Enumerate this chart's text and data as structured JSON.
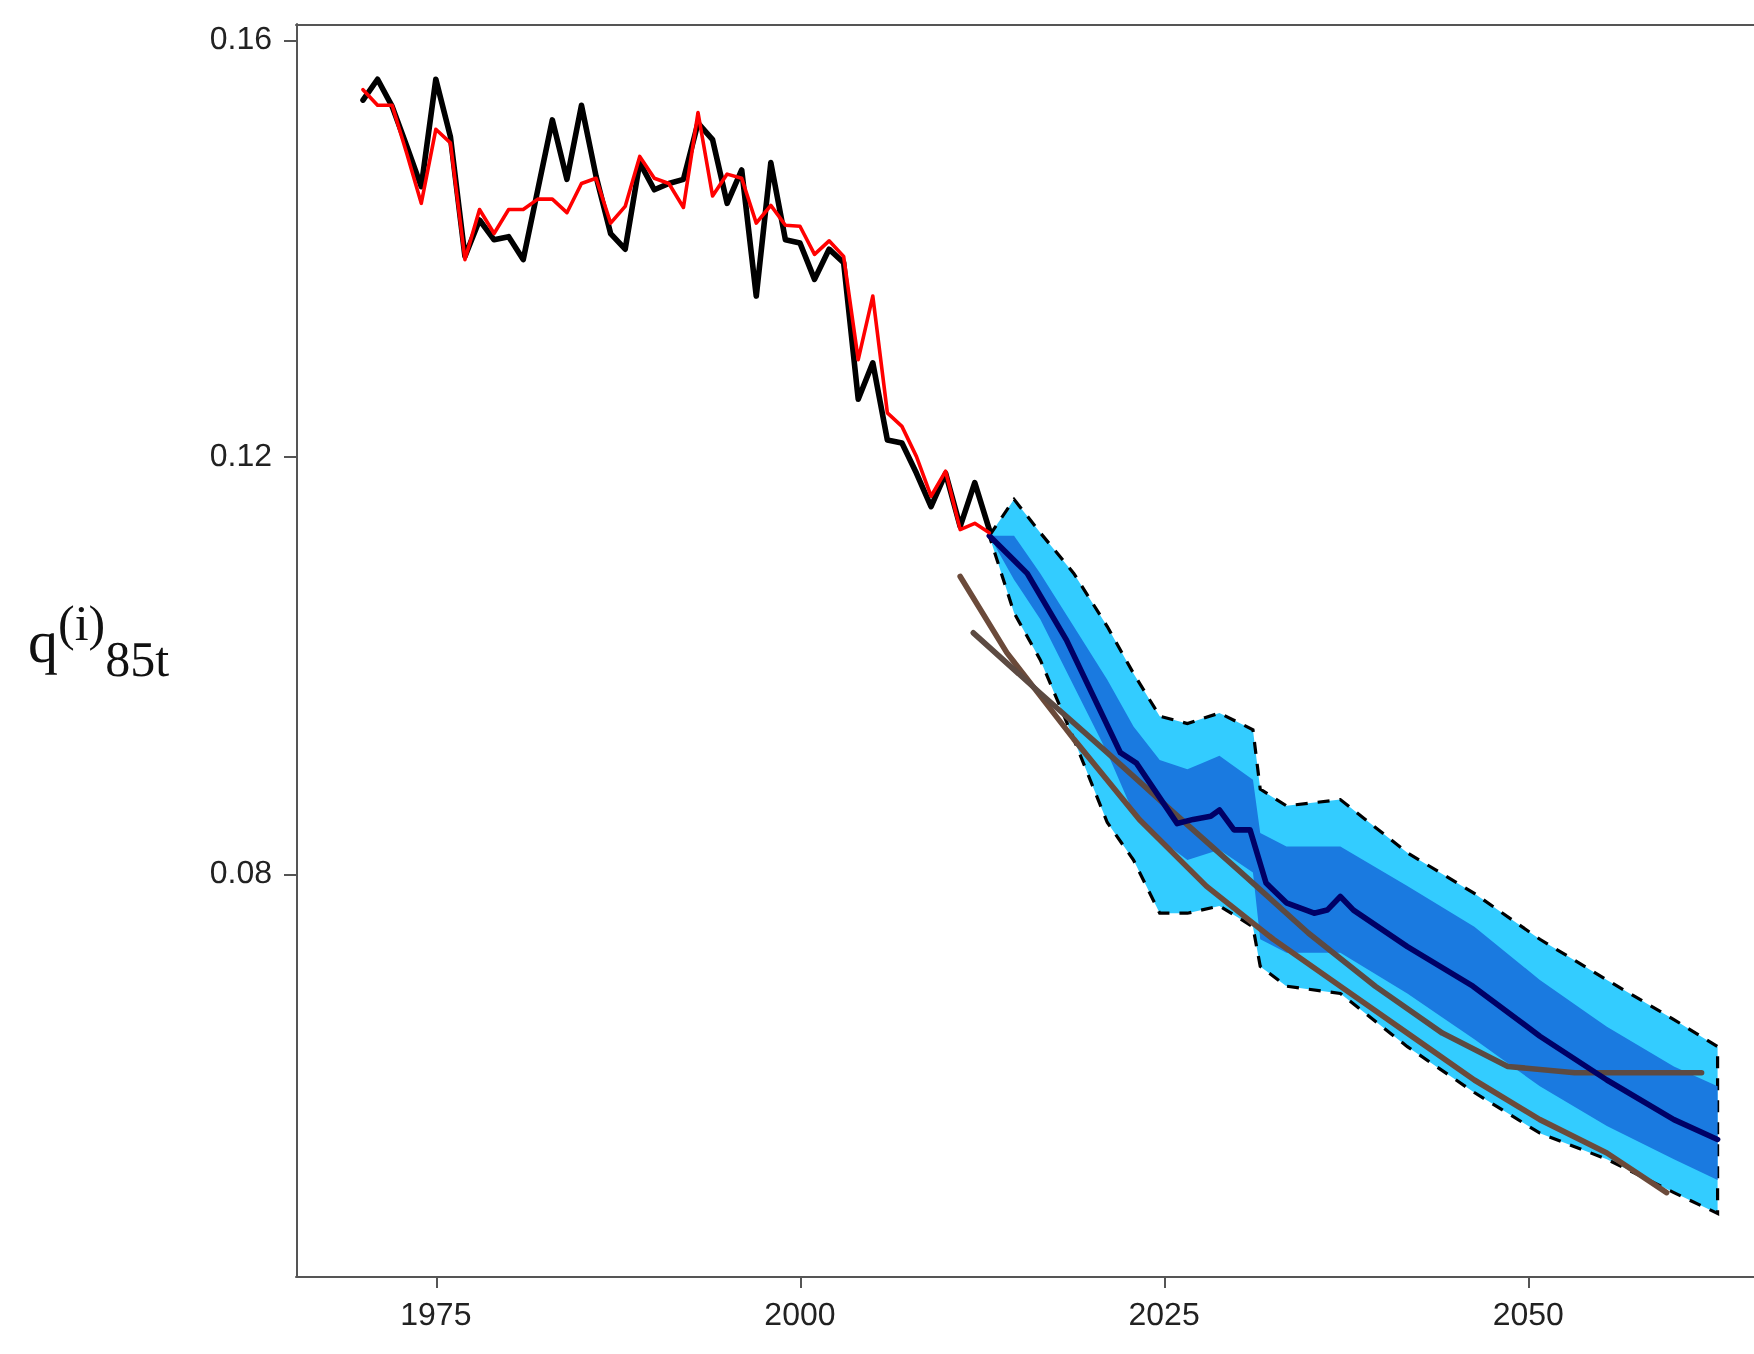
{
  "chart_data": {
    "type": "line",
    "ylabel": "q$^{(i)}$$_{85t}$",
    "xlim": [
      1965.4,
      2065.5
    ],
    "xticks": [
      1975,
      2000,
      2025,
      2050
    ],
    "ylim": [
      0.0414,
      0.1615
    ],
    "yticks": [
      0.08,
      0.12,
      0.16
    ],
    "grid": false,
    "marker": "none",
    "series": [
      {
        "type": "area",
        "color": "#33ccff",
        "line_style": "dashed",
        "x": [
          2013.0,
          2014.7,
          2016.5,
          2018.8,
          2021.1,
          2022.9,
          2024.7,
          2026.6,
          2028.8,
          2031.1,
          2031.6,
          2033.4,
          2037.1,
          2041.7,
          2046.3,
          2050.8,
          2055.4,
          2060.0,
          2063.0
        ],
        "values": [
          null,
          null,
          null,
          null,
          null,
          null,
          null,
          null,
          null,
          null,
          null,
          null,
          null,
          null,
          null,
          null,
          null,
          null,
          null
        ],
        "lower": [
          0.1124,
          0.105,
          0.1005,
          0.0929,
          0.0849,
          0.0813,
          0.0762,
          0.0762,
          0.0769,
          0.0749,
          0.0711,
          0.0692,
          0.0685,
          0.0634,
          0.059,
          0.0551,
          0.0526,
          0.0494,
          0.0474
        ],
        "upper": [
          0.1124,
          0.1159,
          0.1127,
          0.1088,
          0.1037,
          0.0992,
          0.0951,
          0.0944,
          0.0954,
          0.0938,
          0.0881,
          0.0865,
          0.0871,
          0.082,
          0.0781,
          0.0737,
          0.0698,
          0.066,
          0.0634
        ]
      },
      {
        "type": "area",
        "color": "#1a7ae0",
        "line_style": "solid",
        "x": [
          2013.0,
          2014.7,
          2016.5,
          2018.8,
          2021.1,
          2022.9,
          2024.7,
          2026.6,
          2028.8,
          2031.1,
          2031.6,
          2033.4,
          2037.1,
          2041.7,
          2046.3,
          2050.8,
          2055.4,
          2060.0,
          2063.0
        ],
        "values": [
          null,
          null,
          null,
          null,
          null,
          null,
          null,
          null,
          null,
          null,
          null,
          null,
          null,
          null,
          null,
          null,
          null,
          null,
          null
        ],
        "lower": [
          0.1124,
          0.1082,
          0.1044,
          0.098,
          0.0916,
          0.0858,
          0.0833,
          0.0813,
          0.0823,
          0.0801,
          0.0737,
          0.0724,
          0.0724,
          0.0685,
          0.0641,
          0.0596,
          0.0558,
          0.0526,
          0.0506
        ],
        "upper": [
          0.1124,
          0.1124,
          0.1088,
          0.1037,
          0.0986,
          0.0941,
          0.0909,
          0.09,
          0.0913,
          0.089,
          0.0839,
          0.0826,
          0.0826,
          0.0788,
          0.0749,
          0.0698,
          0.0653,
          0.0615,
          0.0596
        ]
      },
      {
        "color": "#6b4a3a",
        "x": [
          2011.0,
          2014.2,
          2018.8,
          2023.3,
          2027.9,
          2032.5,
          2037.1,
          2041.7,
          2046.3,
          2050.8,
          2055.4,
          2059.5
        ],
        "values": [
          0.1085,
          0.1012,
          0.0929,
          0.0852,
          0.0788,
          0.0737,
          0.0692,
          0.0647,
          0.0602,
          0.0564,
          0.0532,
          0.0494
        ]
      },
      {
        "color": "#5c4a42",
        "x": [
          2011.9,
          2016.5,
          2021.1,
          2025.7,
          2030.3,
          2034.9,
          2039.5,
          2044.1,
          2048.6,
          2053.2,
          2061.9
        ],
        "values": [
          0.1031,
          0.0973,
          0.0916,
          0.0858,
          0.0801,
          0.0743,
          0.0692,
          0.0647,
          0.0615,
          0.0609,
          0.0609
        ]
      },
      {
        "color": "#000066",
        "x": [
          2013.0,
          2015.6,
          2018.3,
          2022.0,
          2023.1,
          2025.9,
          2027.0,
          2028.2,
          2028.8,
          2029.8,
          2030.9,
          2032.0,
          2033.4,
          2035.3,
          2036.2,
          2037.1,
          2038.0,
          2041.7,
          2046.2,
          2050.8,
          2055.4,
          2060.0,
          2063.0
        ],
        "values": [
          0.1124,
          0.1088,
          0.1024,
          0.0916,
          0.0906,
          0.0848,
          0.0852,
          0.0855,
          0.0861,
          0.0842,
          0.0842,
          0.0791,
          0.0772,
          0.0762,
          0.0765,
          0.0778,
          0.0765,
          0.073,
          0.0692,
          0.0644,
          0.0602,
          0.0564,
          0.0545
        ]
      },
      {
        "color": "#000000",
        "x": [
          1970,
          1971,
          1972,
          1973,
          1974,
          1975,
          1976,
          1977,
          1978,
          1979,
          1980,
          1981,
          1982,
          1983,
          1984,
          1985,
          1986,
          1987,
          1988,
          1989,
          1990,
          1991,
          1992,
          1993,
          1994,
          1995,
          1996,
          1997,
          1998,
          1999,
          2000,
          2001,
          2002,
          2003,
          2004,
          2005,
          2006,
          2007,
          2008,
          2009,
          2010,
          2011,
          2012,
          2013
        ],
        "values": [
          0.1542,
          0.1562,
          0.1536,
          0.1498,
          0.1459,
          0.1562,
          0.1507,
          0.1392,
          0.1427,
          0.1408,
          0.1411,
          0.1389,
          0.1456,
          0.1523,
          0.1466,
          0.1537,
          0.1469,
          0.1414,
          0.1399,
          0.1482,
          0.1456,
          0.1462,
          0.1466,
          0.152,
          0.1504,
          0.1443,
          0.1475,
          0.1354,
          0.1482,
          0.1408,
          0.1405,
          0.137,
          0.1399,
          0.1386,
          0.1255,
          0.129,
          0.1216,
          0.1213,
          0.1184,
          0.1152,
          0.1184,
          0.1133,
          0.1175,
          0.113
        ]
      },
      {
        "color": "#ff0000",
        "x": [
          1970,
          1971,
          1972,
          1973,
          1974,
          1975,
          1976,
          1977,
          1978,
          1979,
          1980,
          1981,
          1982,
          1983,
          1984,
          1985,
          1986,
          1987,
          1988,
          1989,
          1990,
          1991,
          1992,
          1993,
          1994,
          1995,
          1996,
          1997,
          1998,
          1999,
          2000,
          2001,
          2002,
          2003,
          2004,
          2005,
          2006,
          2007,
          2008,
          2009,
          2010,
          2011,
          2012,
          2013
        ],
        "values": [
          0.1552,
          0.1537,
          0.1537,
          0.1491,
          0.1443,
          0.1514,
          0.1501,
          0.1389,
          0.1437,
          0.1414,
          0.1437,
          0.1437,
          0.1447,
          0.1447,
          0.1434,
          0.1462,
          0.1467,
          0.1424,
          0.144,
          0.1488,
          0.1467,
          0.1462,
          0.1439,
          0.153,
          0.145,
          0.1471,
          0.1467,
          0.1424,
          0.1441,
          0.1422,
          0.1421,
          0.1394,
          0.1407,
          0.1392,
          0.1293,
          0.1354,
          0.1242,
          0.1229,
          0.12,
          0.1162,
          0.1186,
          0.113,
          0.1136,
          0.1127
        ]
      }
    ]
  }
}
